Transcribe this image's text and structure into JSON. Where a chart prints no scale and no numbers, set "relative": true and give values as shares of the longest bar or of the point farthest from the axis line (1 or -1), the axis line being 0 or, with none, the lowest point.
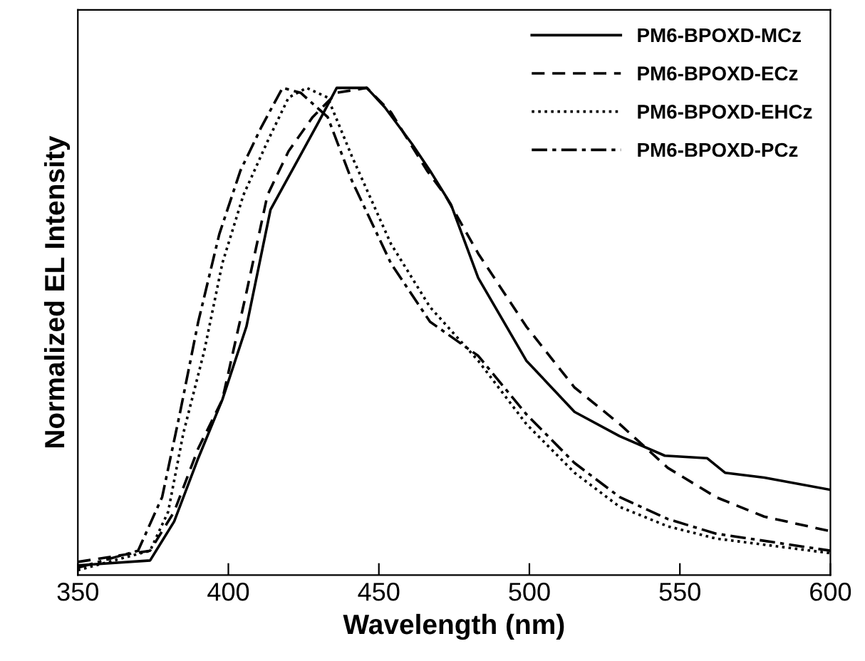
{
  "chart_data": {
    "type": "line",
    "xlabel": "Wavelength (nm)",
    "ylabel": "Normalized EL Intensity",
    "relative": true,
    "xlim": [
      350,
      600
    ],
    "xticks": [
      350,
      400,
      450,
      500,
      550,
      600
    ],
    "legend": "top right",
    "grid": false,
    "marker": "none",
    "series": [
      {
        "name": "PM6-BPOXD-MCz",
        "color": "#000000",
        "line_style": "solid",
        "x": [
          350,
          374,
          382,
          390,
          398,
          406,
          414,
          422,
          430,
          436,
          446,
          452,
          461,
          467,
          474,
          483,
          499,
          515,
          530,
          545,
          559,
          565,
          578,
          600
        ],
        "values": [
          0.02,
          0.03,
          0.11,
          0.24,
          0.36,
          0.51,
          0.75,
          0.84,
          0.93,
          1.0,
          1.0,
          0.96,
          0.885,
          0.83,
          0.76,
          0.61,
          0.44,
          0.335,
          0.285,
          0.245,
          0.24,
          0.21,
          0.2,
          0.175
        ]
      },
      {
        "name": "PM6-BPOXD-ECz",
        "color": "#000000",
        "line_style": "dashed",
        "x": [
          350,
          374,
          382,
          390,
          398,
          406,
          413,
          420,
          428,
          436,
          446,
          454,
          466,
          472,
          483,
          499,
          515,
          530,
          546,
          562,
          578,
          600
        ],
        "values": [
          0.027,
          0.05,
          0.13,
          0.26,
          0.36,
          0.58,
          0.78,
          0.87,
          0.94,
          0.99,
          1.0,
          0.95,
          0.83,
          0.78,
          0.66,
          0.51,
          0.385,
          0.31,
          0.22,
          0.16,
          0.12,
          0.09
        ]
      },
      {
        "name": "PM6-BPOXD-EHCz",
        "color": "#000000",
        "line_style": "dotted",
        "x": [
          350,
          374,
          380,
          385,
          392,
          398,
          405,
          413,
          420,
          426,
          433,
          441,
          454,
          467,
          483,
          499,
          515,
          530,
          546,
          562,
          600
        ],
        "values": [
          0.01,
          0.05,
          0.13,
          0.29,
          0.46,
          0.64,
          0.78,
          0.89,
          0.98,
          1.0,
          0.98,
          0.86,
          0.68,
          0.55,
          0.44,
          0.31,
          0.21,
          0.14,
          0.1,
          0.075,
          0.045
        ]
      },
      {
        "name": "PM6-BPOXD-PCz",
        "color": "#000000",
        "line_style": "dashdot",
        "x": [
          350,
          370,
          378,
          384,
          390,
          397,
          404,
          411,
          418,
          424,
          433,
          441,
          454,
          467,
          483,
          499,
          515,
          530,
          546,
          562,
          600
        ],
        "values": [
          0.015,
          0.05,
          0.16,
          0.335,
          0.52,
          0.7,
          0.83,
          0.92,
          1.0,
          0.99,
          0.94,
          0.81,
          0.64,
          0.52,
          0.45,
          0.33,
          0.23,
          0.16,
          0.115,
          0.085,
          0.05
        ]
      }
    ]
  }
}
